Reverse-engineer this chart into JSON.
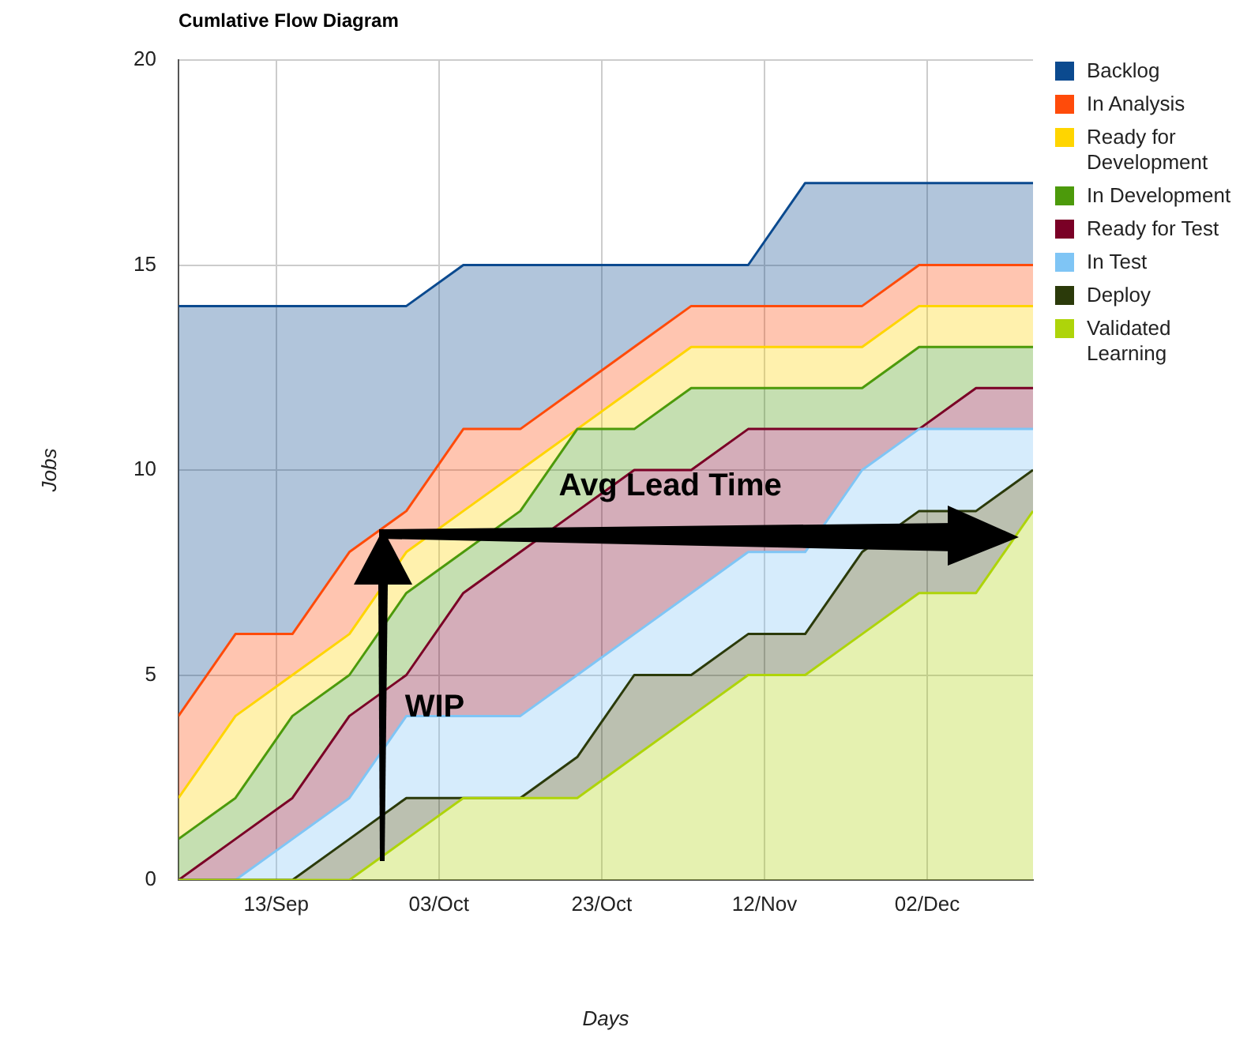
{
  "chart_data": {
    "type": "area",
    "title": "Cumlative Flow Diagram",
    "xlabel": "Days",
    "ylabel": "Jobs",
    "x": [
      "--09-01",
      "--09-08",
      "--09-15",
      "--09-22",
      "--09-29",
      "--10-06",
      "--10-13",
      "--10-20",
      "--10-27",
      "--11-03",
      "--11-10",
      "--11-17",
      "--11-24",
      "--12-01",
      "--12-08",
      "--12-15"
    ],
    "xlim": [
      "--09-01",
      "--12-15"
    ],
    "xticks": [
      {
        "value": "--09-13",
        "label": "13/Sep"
      },
      {
        "value": "--10-03",
        "label": "03/Oct"
      },
      {
        "value": "--10-23",
        "label": "23/Oct"
      },
      {
        "value": "--11-12",
        "label": "12/Nov"
      },
      {
        "value": "--12-02",
        "label": "02/Dec"
      }
    ],
    "ylim": [
      0,
      20
    ],
    "yticks": [
      0,
      5,
      10,
      15,
      20
    ],
    "stacked": true,
    "grid": true,
    "legend": "right",
    "marker": "none",
    "line_style": "solid",
    "series": [
      {
        "name": "Validated Learning",
        "color": "#aed40a",
        "values": [
          0,
          0,
          0,
          0,
          1,
          2,
          2,
          2,
          3,
          4,
          5,
          5,
          6,
          7,
          7,
          9
        ]
      },
      {
        "name": "Deploy",
        "color": "#2b3a0a",
        "values": [
          0,
          0,
          0,
          1,
          1,
          0,
          0,
          1,
          2,
          1,
          1,
          1,
          2,
          2,
          2,
          1
        ]
      },
      {
        "name": "In Test",
        "color": "#7fc5f5",
        "values": [
          0,
          0,
          1,
          1,
          2,
          2,
          2,
          2,
          1,
          2,
          2,
          2,
          2,
          2,
          2,
          1
        ]
      },
      {
        "name": "Ready for Test",
        "color": "#7a0026",
        "values": [
          0,
          1,
          1,
          2,
          1,
          3,
          4,
          4,
          4,
          3,
          3,
          3,
          1,
          0,
          1,
          1
        ]
      },
      {
        "name": "In Development",
        "color": "#4c9a0b",
        "values": [
          1,
          1,
          2,
          1,
          2,
          1,
          1,
          2,
          1,
          2,
          1,
          1,
          1,
          2,
          1,
          1
        ]
      },
      {
        "name": "Ready for Development",
        "color": "#ffd500",
        "values": [
          1,
          2,
          1,
          1,
          1,
          1,
          1,
          0,
          1,
          1,
          1,
          1,
          1,
          1,
          1,
          1
        ]
      },
      {
        "name": "In Analysis",
        "color": "#ff4b0a",
        "values": [
          2,
          2,
          1,
          2,
          1,
          2,
          1,
          1,
          1,
          1,
          1,
          1,
          1,
          1,
          1,
          1
        ]
      },
      {
        "name": "Backlog",
        "color": "#0b4a8f",
        "values": [
          10,
          8,
          8,
          6,
          5,
          4,
          4,
          3,
          2,
          1,
          1,
          3,
          3,
          2,
          2,
          2
        ]
      }
    ],
    "annotations": [
      "WIP",
      "Avg Lead Time"
    ]
  }
}
